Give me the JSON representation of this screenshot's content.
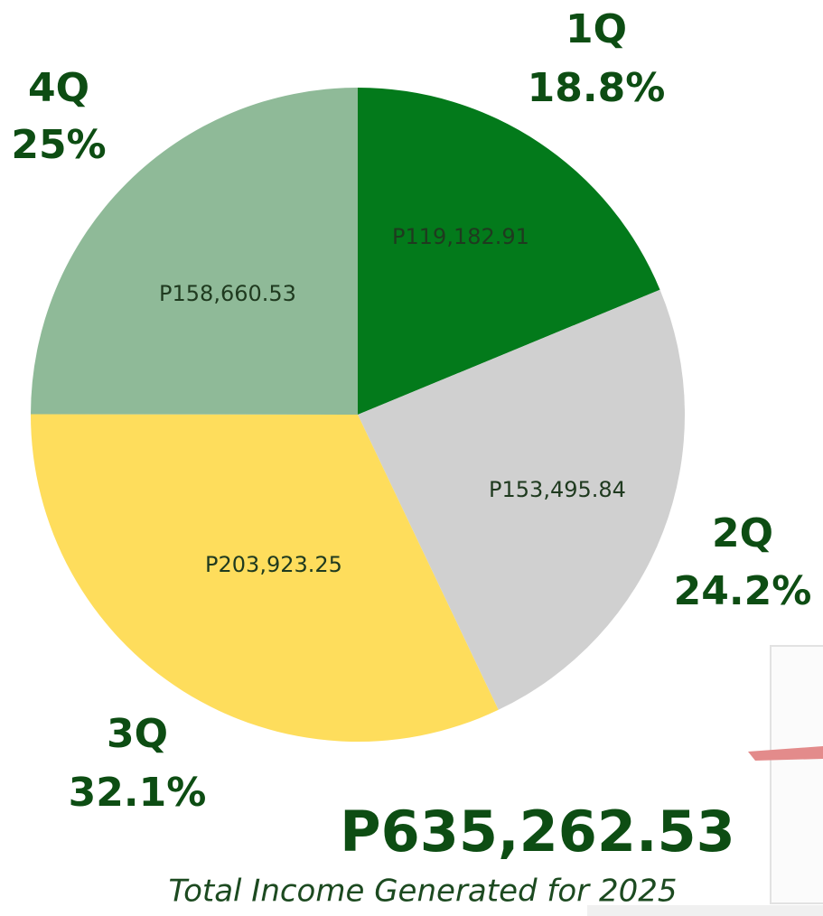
{
  "chart_data": {
    "type": "pie",
    "categories": [
      "1Q",
      "2Q",
      "3Q",
      "4Q"
    ],
    "values": [
      119182.91,
      153495.84,
      203923.25,
      158660.53
    ],
    "value_labels": [
      "P119,182.91",
      "P153,495.84",
      "P203,923.25",
      "P158,660.53"
    ],
    "percent_labels": [
      "18.8%",
      "24.2%",
      "32.1%",
      "25%"
    ],
    "colors": [
      "#037a1b",
      "#d0d0d0",
      "#fedd5c",
      "#8fba98"
    ],
    "total": 635262.53,
    "total_label": "P635,262.53",
    "subtitle": "Total Income Generated for 2025"
  }
}
